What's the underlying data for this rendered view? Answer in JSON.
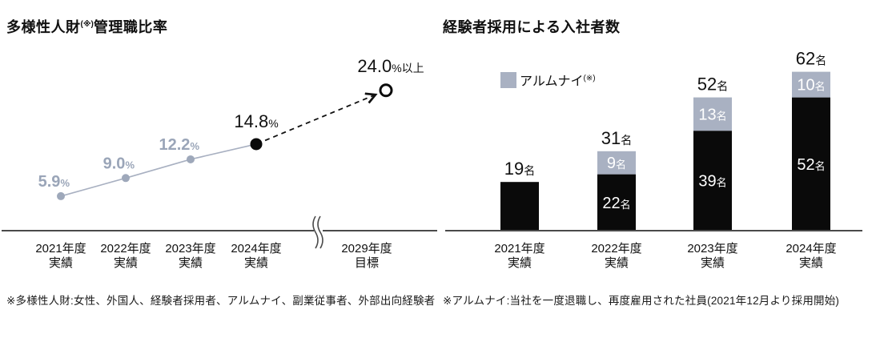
{
  "colors": {
    "black": "#0a0a0a",
    "gray_blue": "#a9b1c2",
    "line_gray": "#a8b0c1",
    "dot_gray": "#9ea8ba",
    "label_gray": "#9aa5b8",
    "axis": "#4a4a4a",
    "text": "#111111",
    "white": "#ffffff"
  },
  "left_chart": {
    "title_parts": [
      "多様性人財",
      "(※)",
      "管理職比率"
    ],
    "footnote": "※多様性人財:女性、外国人、経験者採用者、アルムナイ、副業従事者、外部出向経験者"
  },
  "right_chart": {
    "title": "経験者採用による入社者数",
    "legend": {
      "label": "アルムナイ",
      "sup": "(※)"
    },
    "footnote": "※アルムナイ:当社を一度退職し、再度雇用された社員(2021年12月より採用開始)"
  },
  "chart_data": [
    {
      "type": "line",
      "title": "多様性人財(※)管理職比率",
      "x_labels": [
        [
          "2021年度",
          "実績"
        ],
        [
          "2022年度",
          "実績"
        ],
        [
          "2023年度",
          "実績"
        ],
        [
          "2024年度",
          "実績"
        ],
        [
          "2029年度",
          "目標"
        ]
      ],
      "values": [
        5.9,
        9.0,
        12.2,
        14.8,
        24.0
      ],
      "point_labels": [
        {
          "num": "5.9",
          "suffix": "%",
          "style": "gray"
        },
        {
          "num": "9.0",
          "suffix": "%",
          "style": "gray"
        },
        {
          "num": "12.2",
          "suffix": "%",
          "style": "gray"
        },
        {
          "num": "14.8",
          "suffix": "%",
          "style": "black"
        },
        {
          "num": "24.0",
          "suffix": "%以上",
          "style": "target"
        }
      ],
      "unit": "%",
      "ylim": [
        0,
        30
      ],
      "target_index": 4,
      "axis_break_after_index": 3,
      "grid": false
    },
    {
      "type": "bar",
      "title": "経験者採用による入社者数",
      "categories": [
        [
          "2021年度",
          "実績"
        ],
        [
          "2022年度",
          "実績"
        ],
        [
          "2023年度",
          "実績"
        ],
        [
          "2024年度",
          "実績"
        ]
      ],
      "series": [
        {
          "label": "",
          "color_key": "black",
          "values": [
            19,
            22,
            39,
            52
          ]
        },
        {
          "label": "アルムナイ",
          "color_key": "gray_blue",
          "values": [
            0,
            9,
            13,
            10
          ]
        }
      ],
      "totals": [
        19,
        31,
        52,
        62
      ],
      "unit": "名",
      "legend_position": "upper-left",
      "grid": false
    }
  ]
}
